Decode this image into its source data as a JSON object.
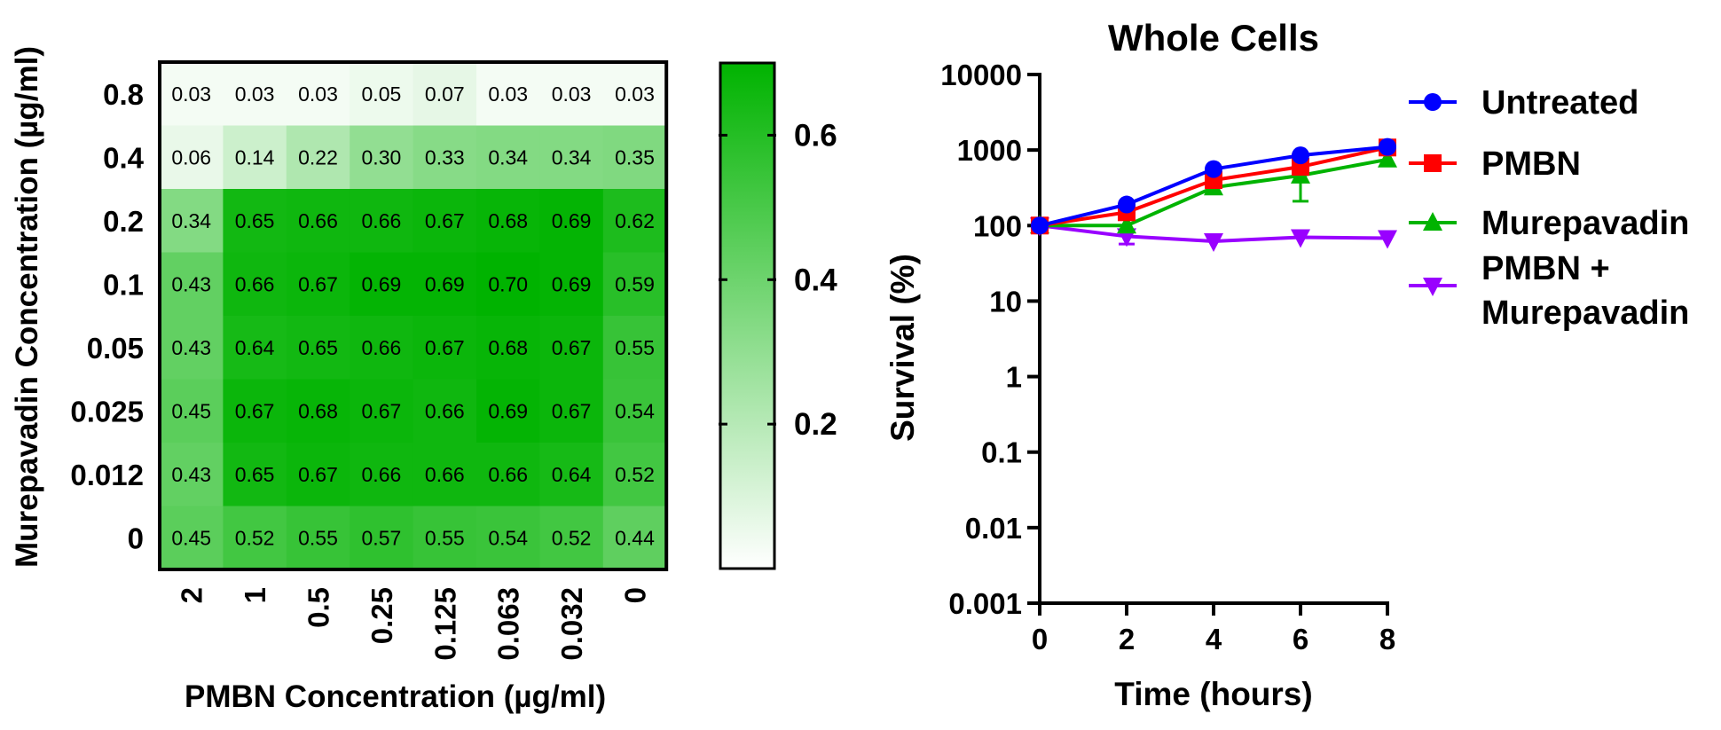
{
  "chart_data": [
    {
      "type": "heatmap",
      "xlabel": "PMBN Concentration (µg/ml)",
      "ylabel": "Murepavadin Concentration (µg/ml)",
      "x_categories": [
        "2",
        "1",
        "0.5",
        "0.25",
        "0.125",
        "0.063",
        "0.032",
        "0"
      ],
      "y_categories": [
        "0.8",
        "0.4",
        "0.2",
        "0.1",
        "0.05",
        "0.025",
        "0.012",
        "0"
      ],
      "values": [
        [
          0.03,
          0.03,
          0.03,
          0.05,
          0.07,
          0.03,
          0.03,
          0.03
        ],
        [
          0.06,
          0.14,
          0.22,
          0.3,
          0.33,
          0.34,
          0.34,
          0.35
        ],
        [
          0.34,
          0.65,
          0.66,
          0.66,
          0.67,
          0.68,
          0.69,
          0.62
        ],
        [
          0.43,
          0.66,
          0.67,
          0.69,
          0.69,
          0.7,
          0.69,
          0.59
        ],
        [
          0.43,
          0.64,
          0.65,
          0.66,
          0.67,
          0.68,
          0.67,
          0.55
        ],
        [
          0.45,
          0.67,
          0.68,
          0.67,
          0.66,
          0.69,
          0.67,
          0.54
        ],
        [
          0.43,
          0.65,
          0.67,
          0.66,
          0.66,
          0.66,
          0.64,
          0.52
        ],
        [
          0.45,
          0.52,
          0.55,
          0.57,
          0.55,
          0.54,
          0.52,
          0.44
        ]
      ],
      "colorbar": {
        "ticks": [
          0.2,
          0.4,
          0.6
        ],
        "tick_labels": [
          "0.2",
          "0.4",
          "0.6"
        ],
        "range": [
          0.0,
          0.7
        ],
        "color_low": "#ffffff",
        "color_high": "#00b300"
      }
    },
    {
      "type": "line",
      "title": "Whole Cells",
      "xlabel": "Time (hours)",
      "ylabel": "Survival (%)",
      "x": [
        0,
        2,
        4,
        6,
        8
      ],
      "x_ticks": [
        0,
        2,
        4,
        6,
        8
      ],
      "xlim": [
        0,
        8
      ],
      "yscale": "log",
      "ylim": [
        0.001,
        10000
      ],
      "y_ticks": [
        0.001,
        0.01,
        0.1,
        1,
        10,
        100,
        1000,
        10000
      ],
      "y_tick_labels": [
        "0.001",
        "0.01",
        "0.1",
        "1",
        "10",
        "100",
        "1000",
        "10000"
      ],
      "legend_position": "right",
      "series": [
        {
          "name": "Untreated",
          "color": "#0000ff",
          "marker": "circle",
          "values": [
            100,
            190,
            560,
            850,
            1100
          ],
          "error": [
            0,
            0,
            0,
            0,
            0
          ]
        },
        {
          "name": "PMBN",
          "color": "#ff0000",
          "marker": "square",
          "values": [
            100,
            150,
            400,
            600,
            1080
          ],
          "error": [
            0,
            0,
            0,
            0,
            0
          ]
        },
        {
          "name": "Murepavadin",
          "color": "#00b300",
          "marker": "triangle-up",
          "values": [
            100,
            100,
            320,
            460,
            750
          ],
          "error": [
            0,
            0,
            0,
            250,
            0
          ]
        },
        {
          "name_lines": [
            "PMBN +",
            "Murepavadin"
          ],
          "color": "#9900ff",
          "marker": "triangle-down",
          "values": [
            100,
            72,
            62,
            70,
            68
          ],
          "error": [
            0,
            15,
            0,
            0,
            0
          ]
        }
      ]
    }
  ]
}
